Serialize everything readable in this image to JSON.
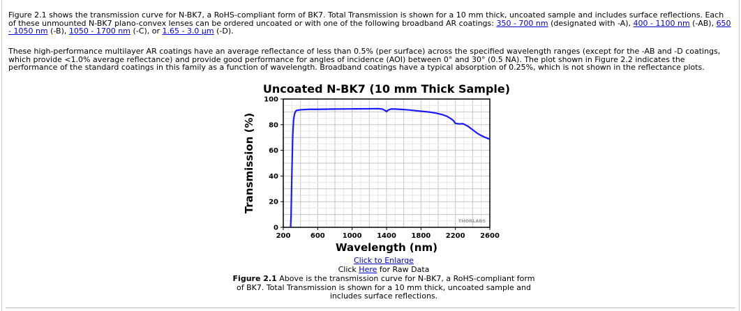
{
  "paragraph1": {
    "text_a": "Figure 2.1 shows the transmission curve for N-BK7, a RoHS-compliant form of BK7. Total Transmission is shown for a 10 mm thick, uncoated sample and includes surface reflections. Each of these unmounted N-BK7 plano-convex lenses can be ordered uncoated or with one of the following broadband AR coatings: ",
    "link_a": "350 - 700 nm",
    "text_b": " (designated with -A), ",
    "link_b": "400 - 1100 nm",
    "text_c": " (-AB), ",
    "link_c": "650 - 1050 nm",
    "text_d": " (-B), ",
    "link_d": "1050 - 1700 nm",
    "text_e": " (-C), or ",
    "link_e": "1.65 - 3.0 µm",
    "text_f": " (-D)."
  },
  "paragraph2": {
    "text": "These high-performance multilayer AR coatings have an average reflectance of less than 0.5% (per surface) across the specified wavelength ranges (except for the -AB and -D coatings, which provide <1.0% average reflectance) and provide good performance for angles of incidence (AOI) between 0° and 30° (0.5 NA). The plot shown in Figure 2.2 indicates the performance of the standard coatings in this family as a function of wavelength. Broadband coatings have a typical absorption of 0.25%, which is not shown in the reflectance plots."
  },
  "chart_data": {
    "type": "line",
    "title": "Uncoated N-BK7 (10 mm Thick Sample)",
    "xlabel": "Wavelength (nm)",
    "ylabel": "Transmission (%)",
    "xlim": [
      200,
      2600
    ],
    "ylim": [
      0,
      100
    ],
    "xticks": [
      "200",
      "600",
      "1000",
      "1400",
      "1800",
      "2200",
      "2600"
    ],
    "yticks": [
      "0",
      "20",
      "40",
      "60",
      "80",
      "100"
    ],
    "grid": true,
    "watermark": "THORLABS",
    "series": [
      {
        "color": "#1a1aff",
        "x": [
          285,
          290,
          300,
          310,
          320,
          330,
          340,
          350,
          370,
          400,
          500,
          600,
          800,
          1000,
          1200,
          1300,
          1350,
          1380,
          1400,
          1420,
          1450,
          1500,
          1600,
          1700,
          1800,
          1900,
          1950,
          2000,
          2050,
          2100,
          2150,
          2180,
          2200,
          2250,
          2280,
          2300,
          2350,
          2400,
          2450,
          2500,
          2550,
          2600
        ],
        "y": [
          0,
          8,
          42,
          72,
          84,
          88,
          90,
          91,
          91.3,
          91.6,
          92,
          92,
          92.2,
          92.3,
          92.4,
          92.5,
          92.2,
          91.2,
          90.2,
          91.4,
          92.2,
          92.2,
          91.8,
          91.2,
          90.5,
          89.8,
          89.3,
          88.6,
          87.8,
          86.6,
          84.6,
          83,
          81,
          80.6,
          80.8,
          80.4,
          78.6,
          76,
          73.5,
          71.5,
          70,
          68.6
        ]
      }
    ]
  },
  "links": {
    "enlarge": "Click to Enlarge",
    "raw_prefix": "Click ",
    "raw_link": "Here",
    "raw_suffix": " for Raw Data"
  },
  "caption": {
    "label": "Figure 2.1",
    "text": "  Above is the transmission curve for N-BK7, a RoHS-compliant form of BK7. Total Transmission is shown for a 10 mm thick, uncoated sample and includes surface reflections."
  }
}
